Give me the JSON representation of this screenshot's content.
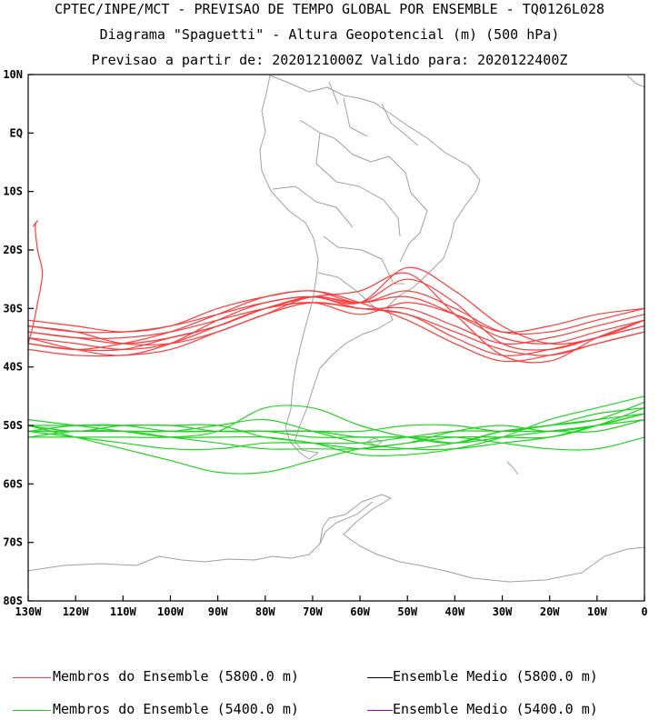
{
  "header": {
    "line1": "CPTEC/INPE/MCT - PREVISAO DE TEMPO GLOBAL POR ENSEMBLE - TQ0126L028",
    "line2": "Diagrama \"Spaguetti\" - Altura Geopotencial (m) (500 hPa)",
    "line3": "Previsao a partir de: 2020121000Z  Valido para: 2020122400Z"
  },
  "legend": {
    "members_5800": "Membros do Ensemble (5800.0 m)",
    "mean_5800": "Ensemble Medio (5800.0 m)",
    "members_5400": "Membros do Ensemble (5400.0 m)",
    "mean_5400": "Ensemble Medio (5400.0 m)"
  },
  "colors": {
    "members_5800": "#ff3b3b",
    "mean_5800": "#000000",
    "members_5400": "#22d422",
    "mean_5400": "#b000b0",
    "coastline": "#a0a0a0"
  },
  "chart_data": {
    "type": "line",
    "xlim": [
      -130,
      0
    ],
    "ylim": [
      -80,
      10
    ],
    "x_ticks": [
      {
        "v": -130,
        "label": "130W"
      },
      {
        "v": -120,
        "label": "120W"
      },
      {
        "v": -110,
        "label": "110W"
      },
      {
        "v": -100,
        "label": "100W"
      },
      {
        "v": -90,
        "label": "90W"
      },
      {
        "v": -80,
        "label": "80W"
      },
      {
        "v": -70,
        "label": "70W"
      },
      {
        "v": -60,
        "label": "60W"
      },
      {
        "v": -50,
        "label": "50W"
      },
      {
        "v": -40,
        "label": "40W"
      },
      {
        "v": -30,
        "label": "30W"
      },
      {
        "v": -20,
        "label": "20W"
      },
      {
        "v": -10,
        "label": "10W"
      },
      {
        "v": 0,
        "label": "0"
      }
    ],
    "y_ticks": [
      {
        "v": 10,
        "label": "10N"
      },
      {
        "v": 0,
        "label": "EQ"
      },
      {
        "v": -10,
        "label": "10S"
      },
      {
        "v": -20,
        "label": "20S"
      },
      {
        "v": -30,
        "label": "30S"
      },
      {
        "v": -40,
        "label": "40S"
      },
      {
        "v": -50,
        "label": "50S"
      },
      {
        "v": -60,
        "label": "60S"
      },
      {
        "v": -70,
        "label": "70S"
      },
      {
        "v": -80,
        "label": "80S"
      }
    ],
    "x": [
      -130,
      -120,
      -110,
      -100,
      -90,
      -80,
      -70,
      -60,
      -50,
      -40,
      -30,
      -20,
      -10,
      0
    ],
    "series_5800": [
      [
        -33,
        -34,
        -34,
        -33,
        -31,
        -29,
        -28,
        -30,
        -30,
        -33,
        -36,
        -35,
        -33,
        -31
      ],
      [
        -34,
        -35,
        -36,
        -35,
        -33,
        -30,
        -28,
        -29,
        -28,
        -31,
        -35,
        -36,
        -34,
        -32
      ],
      [
        -35,
        -36,
        -37,
        -36,
        -33,
        -30,
        -29,
        -30,
        -31,
        -35,
        -38,
        -37,
        -35,
        -33
      ],
      [
        -36,
        -37,
        -36,
        -34,
        -31,
        -28,
        -27,
        -29,
        -27,
        -30,
        -34,
        -34,
        -32,
        -30
      ],
      [
        -37,
        -38,
        -38,
        -37,
        -34,
        -31,
        -28,
        -29,
        -25,
        -29,
        -36,
        -37,
        -35,
        -33
      ],
      [
        -32,
        -33,
        -34,
        -33,
        -30,
        -28,
        -27,
        -29,
        -32,
        -36,
        -39,
        -38,
        -36,
        -34
      ],
      [
        -34,
        -35,
        -35,
        -34,
        -32,
        -30,
        -29,
        -31,
        -29,
        -31,
        -34,
        -33,
        -31,
        -30
      ],
      [
        -35,
        -37,
        -38,
        -36,
        -32,
        -29,
        -28,
        -29,
        -23,
        -27,
        -33,
        -36,
        -35,
        -32
      ],
      [
        -33,
        -34,
        -36,
        -36,
        -34,
        -31,
        -29,
        -30,
        -31,
        -34,
        -37,
        -38,
        -36,
        -34
      ],
      [
        -36,
        -37,
        -37,
        -35,
        -33,
        -30,
        -28,
        -27,
        -24,
        -31,
        -38,
        -39,
        -35,
        -32
      ]
    ],
    "series_5400": [
      [
        -50,
        -50,
        -50,
        -50,
        -51,
        -51,
        -51,
        -52,
        -52,
        -53,
        -52,
        -51,
        -50,
        -49
      ],
      [
        -51,
        -51,
        -51,
        -51,
        -50,
        -49,
        -51,
        -53,
        -54,
        -54,
        -53,
        -52,
        -50,
        -48
      ],
      [
        -49,
        -50,
        -51,
        -52,
        -52,
        -52,
        -53,
        -54,
        -54,
        -53,
        -51,
        -50,
        -49,
        -48
      ],
      [
        -52,
        -51,
        -51,
        -52,
        -53,
        -54,
        -54,
        -54,
        -53,
        -52,
        -52,
        -52,
        -50,
        -47
      ],
      [
        -50,
        -51,
        -50,
        -50,
        -50,
        -52,
        -53,
        -55,
        -55,
        -54,
        -52,
        -49,
        -47,
        -45
      ],
      [
        -51,
        -52,
        -53,
        -54,
        -54,
        -53,
        -53,
        -53,
        -52,
        -51,
        -51,
        -51,
        -51,
        -49
      ],
      [
        -50,
        -52,
        -54,
        -56,
        -58,
        -58,
        -56,
        -54,
        -53,
        -51,
        -50,
        -51,
        -50,
        -48
      ],
      [
        -51,
        -50,
        -50,
        -51,
        -51,
        -51,
        -52,
        -52,
        -52,
        -52,
        -53,
        -54,
        -54,
        -52
      ],
      [
        -52,
        -52,
        -52,
        -52,
        -51,
        -47,
        -47,
        -50,
        -52,
        -53,
        -51,
        -50,
        -48,
        -47
      ],
      [
        -51,
        -51,
        -51,
        -51,
        -51,
        -51,
        -51,
        -51,
        -50,
        -50,
        -51,
        -50,
        -49,
        -46
      ]
    ],
    "extra_5800_west": [
      [
        -130,
        -36
      ],
      [
        -129,
        -33
      ],
      [
        -128,
        -29
      ],
      [
        -127,
        -24
      ],
      [
        -128,
        -20
      ],
      [
        -128.5,
        -16
      ],
      [
        -128,
        -15
      ],
      [
        -129,
        -16
      ]
    ]
  }
}
